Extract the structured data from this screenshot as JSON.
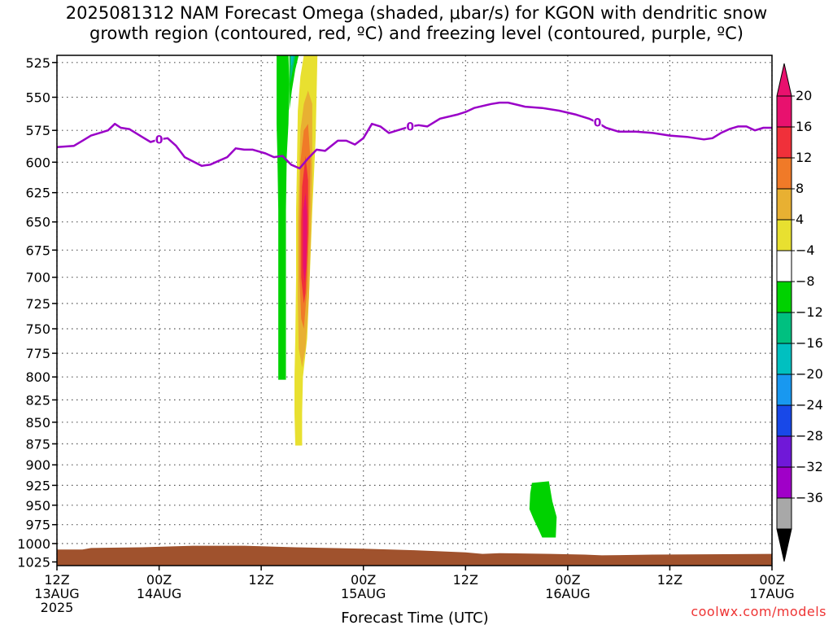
{
  "chart_data": {
    "type": "heatmap",
    "title": "2025081312 NAM Forecast Omega (shaded, μbar/s) for KGON with dendritic snow\ngrowth region (contoured, red, ºC) and freezing level (contoured, purple, ºC)",
    "xlabel": "Forecast Time (UTC)",
    "ylabel": "",
    "x_ticks": [
      {
        "lines": [
          "12Z",
          "13AUG",
          "2025"
        ]
      },
      {
        "lines": [
          "00Z",
          "14AUG"
        ]
      },
      {
        "lines": [
          "12Z"
        ]
      },
      {
        "lines": [
          "00Z",
          "15AUG"
        ]
      },
      {
        "lines": [
          "12Z"
        ]
      },
      {
        "lines": [
          "00Z",
          "16AUG"
        ]
      },
      {
        "lines": [
          "12Z"
        ]
      },
      {
        "lines": [
          "00Z",
          "17AUG"
        ]
      }
    ],
    "x_hours": [
      0,
      12,
      24,
      36,
      48,
      60,
      72,
      84
    ],
    "xlim_hours": [
      0,
      84
    ],
    "y_ticks": [
      525,
      550,
      575,
      600,
      625,
      650,
      675,
      700,
      725,
      750,
      775,
      800,
      825,
      850,
      875,
      900,
      925,
      950,
      975,
      1000,
      1025
    ],
    "ylim": [
      520,
      1030
    ],
    "y_scale": "log-pressure",
    "grid": true,
    "colorbar": {
      "levels": [
        "20",
        "16",
        "12",
        "8",
        "4",
        "−4",
        "−8",
        "−12",
        "−16",
        "−20",
        "−24",
        "−28",
        "−32",
        "−36"
      ],
      "colors": [
        "#e8116e",
        "#f0303a",
        "#f07a28",
        "#e8b032",
        "#e8e030",
        "#ffffff",
        "#00d200",
        "#00c080",
        "#00c0c0",
        "#1898f0",
        "#1848e8",
        "#7018d8",
        "#a000c8",
        "#a8a8a8"
      ],
      "top_arrow_color": "#e8116e",
      "bottom_arrow_color": "#000000"
    },
    "freezing_level": {
      "color": "#9a00c8",
      "label": "0",
      "label_hours": [
        12,
        41.5,
        63.5
      ],
      "points": [
        [
          0,
          588
        ],
        [
          2,
          587
        ],
        [
          3,
          583
        ],
        [
          4,
          579
        ],
        [
          5,
          577
        ],
        [
          6,
          575
        ],
        [
          6.8,
          570
        ],
        [
          7.5,
          573
        ],
        [
          8.5,
          574
        ],
        [
          10,
          580
        ],
        [
          11,
          584
        ],
        [
          12,
          582
        ],
        [
          13,
          581
        ],
        [
          14,
          587
        ],
        [
          15,
          596
        ],
        [
          17,
          603
        ],
        [
          18,
          602
        ],
        [
          19,
          599
        ],
        [
          20,
          596
        ],
        [
          21,
          589
        ],
        [
          22,
          590
        ],
        [
          23,
          590
        ],
        [
          24.5,
          593
        ],
        [
          25.5,
          596
        ],
        [
          26.5,
          595
        ],
        [
          27.5,
          602
        ],
        [
          28.5,
          605
        ],
        [
          29.5,
          597
        ],
        [
          30.5,
          590
        ],
        [
          31.5,
          591
        ],
        [
          33,
          583
        ],
        [
          34,
          583
        ],
        [
          35,
          586
        ],
        [
          36,
          581
        ],
        [
          37,
          570
        ],
        [
          38,
          572
        ],
        [
          39,
          577
        ],
        [
          40,
          575
        ],
        [
          41.5,
          572
        ],
        [
          42.5,
          571
        ],
        [
          43.5,
          572
        ],
        [
          45,
          566
        ],
        [
          47,
          563
        ],
        [
          48,
          561
        ],
        [
          49,
          558
        ],
        [
          51,
          555
        ],
        [
          52,
          554
        ],
        [
          53,
          554
        ],
        [
          55,
          557
        ],
        [
          57,
          558
        ],
        [
          59,
          560
        ],
        [
          61,
          563
        ],
        [
          62.5,
          566
        ],
        [
          63.5,
          569
        ],
        [
          64.5,
          573
        ],
        [
          66,
          576
        ],
        [
          68,
          576
        ],
        [
          70,
          577
        ],
        [
          72,
          579
        ],
        [
          74,
          580
        ],
        [
          76,
          582
        ],
        [
          77,
          581
        ],
        [
          78,
          577
        ],
        [
          79,
          574
        ],
        [
          80,
          572
        ],
        [
          81,
          572
        ],
        [
          82,
          575
        ],
        [
          83,
          573
        ],
        [
          84,
          573
        ]
      ]
    },
    "omega_regions": [
      {
        "level": "-8",
        "color": "#00d200",
        "polygon": [
          [
            25.8,
            520
          ],
          [
            27.2,
            520
          ],
          [
            27.3,
            540
          ],
          [
            27.2,
            570
          ],
          [
            27.0,
            595
          ],
          [
            26.9,
            640
          ],
          [
            26.9,
            700
          ],
          [
            26.9,
            760
          ],
          [
            26.9,
            803
          ],
          [
            26.0,
            803
          ],
          [
            26.0,
            760
          ],
          [
            26.0,
            700
          ],
          [
            26.0,
            640
          ],
          [
            25.9,
            595
          ],
          [
            25.8,
            570
          ],
          [
            25.8,
            540
          ]
        ]
      },
      {
        "level": "-8",
        "color": "#00d200",
        "polygon": [
          [
            27.3,
            520
          ],
          [
            28.4,
            520
          ],
          [
            28.0,
            530
          ],
          [
            27.6,
            545
          ],
          [
            27.3,
            560
          ]
        ]
      },
      {
        "level": "-12",
        "color": "#00c080",
        "polygon": [
          [
            27.4,
            520
          ],
          [
            28.0,
            520
          ],
          [
            27.7,
            530
          ],
          [
            27.4,
            540
          ]
        ]
      },
      {
        "level": "-16",
        "color": "#00c0c0",
        "polygon": [
          [
            27.5,
            520
          ],
          [
            27.8,
            520
          ],
          [
            27.6,
            527
          ],
          [
            27.5,
            527
          ]
        ]
      },
      {
        "level": "-8",
        "color": "#00d200",
        "polygon": [
          [
            55.8,
            922
          ],
          [
            57.8,
            920
          ],
          [
            58.2,
            945
          ],
          [
            58.7,
            965
          ],
          [
            58.6,
            992
          ],
          [
            57.0,
            992
          ],
          [
            56.6,
            982
          ],
          [
            56.0,
            968
          ],
          [
            55.5,
            955
          ],
          [
            55.6,
            935
          ]
        ]
      },
      {
        "level": "4",
        "color": "#e8e030",
        "polygon": [
          [
            29.0,
            520
          ],
          [
            30.6,
            520
          ],
          [
            30.4,
            580
          ],
          [
            30.0,
            640
          ],
          [
            29.7,
            700
          ],
          [
            29.4,
            760
          ],
          [
            28.9,
            800
          ],
          [
            28.8,
            840
          ],
          [
            28.8,
            877
          ],
          [
            28.0,
            877
          ],
          [
            27.9,
            840
          ],
          [
            27.9,
            800
          ],
          [
            28.0,
            760
          ],
          [
            28.1,
            700
          ],
          [
            28.1,
            640
          ],
          [
            28.2,
            600
          ],
          [
            28.3,
            560
          ],
          [
            28.6,
            535
          ]
        ]
      },
      {
        "level": "8",
        "color": "#e8b032",
        "polygon": [
          [
            28.6,
            575
          ],
          [
            29.0,
            555
          ],
          [
            29.5,
            545
          ],
          [
            30.0,
            555
          ],
          [
            30.0,
            610
          ],
          [
            29.8,
            670
          ],
          [
            29.6,
            720
          ],
          [
            29.2,
            770
          ],
          [
            28.8,
            790
          ],
          [
            28.4,
            770
          ],
          [
            28.3,
            720
          ],
          [
            28.3,
            650
          ]
        ]
      },
      {
        "level": "12",
        "color": "#f07a28",
        "polygon": [
          [
            28.6,
            600
          ],
          [
            29.0,
            575
          ],
          [
            29.5,
            570
          ],
          [
            29.8,
            600
          ],
          [
            29.6,
            660
          ],
          [
            29.4,
            710
          ],
          [
            29.0,
            750
          ],
          [
            28.7,
            740
          ],
          [
            28.5,
            700
          ],
          [
            28.5,
            650
          ]
        ]
      },
      {
        "level": "16",
        "color": "#f0303a",
        "polygon": [
          [
            28.8,
            620
          ],
          [
            29.2,
            595
          ],
          [
            29.5,
            615
          ],
          [
            29.5,
            660
          ],
          [
            29.2,
            715
          ],
          [
            29.0,
            725
          ],
          [
            28.7,
            700
          ],
          [
            28.7,
            650
          ]
        ]
      },
      {
        "level": "20",
        "color": "#e8116e",
        "polygon": [
          [
            28.9,
            640
          ],
          [
            29.2,
            625
          ],
          [
            29.4,
            645
          ],
          [
            29.3,
            690
          ],
          [
            29.1,
            705
          ],
          [
            28.9,
            690
          ]
        ]
      }
    ],
    "surface": {
      "color": "#a0522d",
      "points": [
        [
          0,
          1008
        ],
        [
          3,
          1008
        ],
        [
          4,
          1006
        ],
        [
          10,
          1005
        ],
        [
          16,
          1003
        ],
        [
          22,
          1003
        ],
        [
          28,
          1005
        ],
        [
          36,
          1007
        ],
        [
          42,
          1009
        ],
        [
          48,
          1012
        ],
        [
          50,
          1014
        ],
        [
          52,
          1013
        ],
        [
          58,
          1014
        ],
        [
          62,
          1015
        ],
        [
          64,
          1016
        ],
        [
          70,
          1015
        ],
        [
          84,
          1014
        ]
      ]
    }
  },
  "credit": "coolwx.com/models"
}
